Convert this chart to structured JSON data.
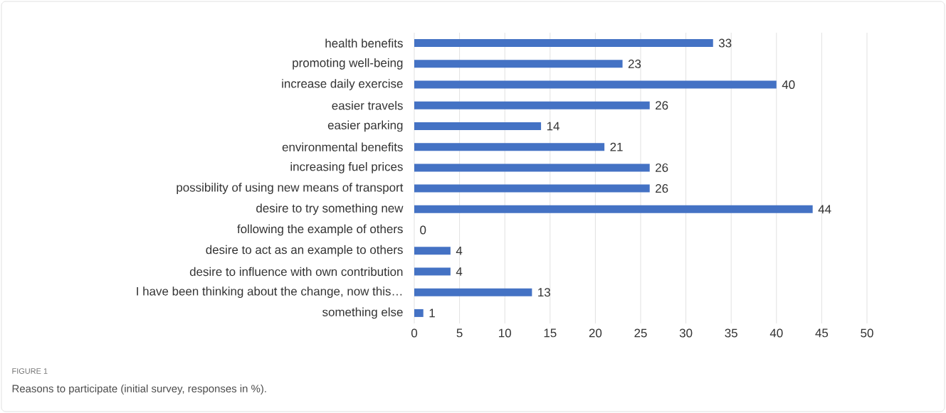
{
  "chart_data": {
    "type": "bar",
    "orientation": "horizontal",
    "categories": [
      "health benefits",
      "promoting well-being",
      "increase daily exercise",
      "easier travels",
      "easier parking",
      "environmental benefits",
      "increasing fuel prices",
      "possibility of using new means of transport",
      "desire to try something new",
      "following the example of others",
      "desire to act as an example to others",
      "desire to influence with own contribution",
      "I have been thinking about the change, now this…",
      "something else"
    ],
    "values": [
      33,
      23,
      40,
      26,
      14,
      21,
      26,
      26,
      44,
      0,
      4,
      4,
      13,
      1
    ],
    "color": "#4472c4",
    "xlim": [
      0,
      50
    ],
    "xticks": [
      0,
      5,
      10,
      15,
      20,
      25,
      30,
      35,
      40,
      45,
      50
    ],
    "grid": "x",
    "data_labels": true,
    "annotations": [
      "FIGURE 1",
      "Reasons to participate (initial survey, responses in %)."
    ]
  }
}
